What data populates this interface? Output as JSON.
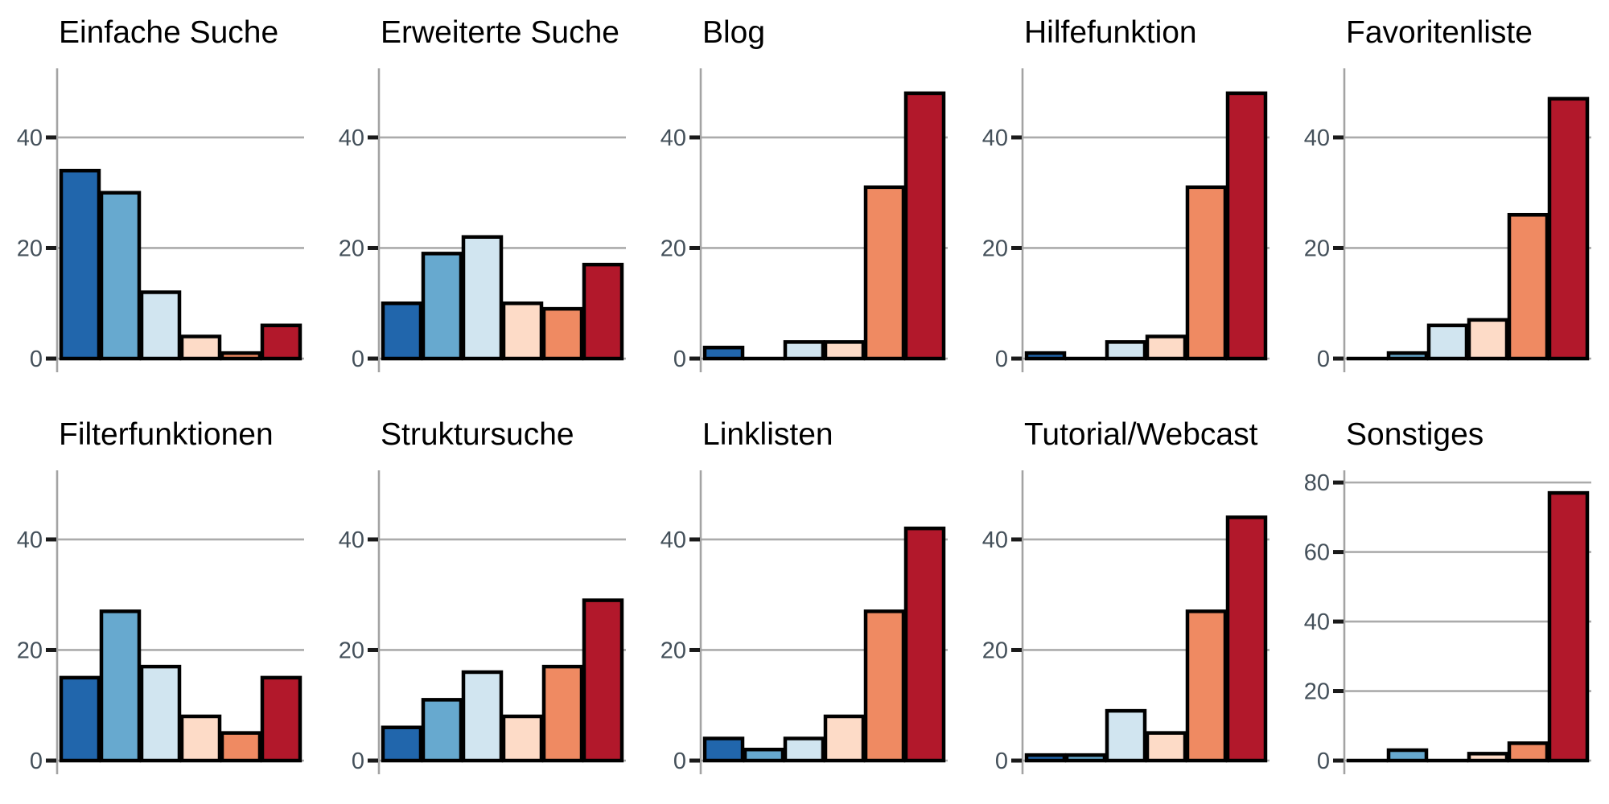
{
  "chart_data": {
    "type": "bar",
    "layout": "facet_grid_5x2",
    "grid": true,
    "legend": "none",
    "bar_colors": [
      "#2166ac",
      "#67a9cf",
      "#d1e5f0",
      "#fddbc7",
      "#ef8a62",
      "#b2182b"
    ],
    "style": {
      "gridline_color": "#ababab",
      "axis_line_color": "#a3a3a3",
      "tick_mark_color": "#1a1a1a",
      "tick_label_color": "#44505a",
      "bar_outline_color": "#000000",
      "title_color": "#000000"
    },
    "facets": [
      {
        "slug": "einfache-suche",
        "title": "Einfache Suche",
        "values": [
          34,
          30,
          12,
          4,
          1,
          6
        ],
        "yticks": [
          0,
          20,
          40
        ],
        "ymax": 52.5
      },
      {
        "slug": "erweiterte-suche",
        "title": "Erweiterte Suche",
        "values": [
          10,
          19,
          22,
          10,
          9,
          17
        ],
        "yticks": [
          0,
          20,
          40
        ],
        "ymax": 52.5
      },
      {
        "slug": "blog",
        "title": "Blog",
        "values": [
          2,
          0,
          3,
          3,
          31,
          48
        ],
        "yticks": [
          0,
          20,
          40
        ],
        "ymax": 52.5
      },
      {
        "slug": "hilfefunktion",
        "title": "Hilfefunktion",
        "values": [
          1,
          0,
          3,
          4,
          31,
          48
        ],
        "yticks": [
          0,
          20,
          40
        ],
        "ymax": 52.5
      },
      {
        "slug": "favoritenliste",
        "title": "Favoritenliste",
        "values": [
          0,
          1,
          6,
          7,
          26,
          47
        ],
        "yticks": [
          0,
          20,
          40
        ],
        "ymax": 52.5
      },
      {
        "slug": "filterfunktionen",
        "title": "Filterfunktionen",
        "values": [
          15,
          27,
          17,
          8,
          5,
          15
        ],
        "yticks": [
          0,
          20,
          40
        ],
        "ymax": 52.5
      },
      {
        "slug": "struktursuche",
        "title": "Struktursuche",
        "values": [
          6,
          11,
          16,
          8,
          17,
          29
        ],
        "yticks": [
          0,
          20,
          40
        ],
        "ymax": 52.5
      },
      {
        "slug": "linklisten",
        "title": "Linklisten",
        "values": [
          4,
          2,
          4,
          8,
          27,
          42
        ],
        "yticks": [
          0,
          20,
          40
        ],
        "ymax": 52.5
      },
      {
        "slug": "tutorial-webcast",
        "title": "Tutorial/Webcast",
        "values": [
          1,
          1,
          9,
          5,
          27,
          44
        ],
        "yticks": [
          0,
          20,
          40
        ],
        "ymax": 52.5
      },
      {
        "slug": "sonstiges",
        "title": "Sonstiges",
        "values": [
          0,
          3,
          0,
          2,
          5,
          77
        ],
        "yticks": [
          0,
          20,
          40,
          60,
          80
        ],
        "ymax": 83.5
      }
    ]
  }
}
